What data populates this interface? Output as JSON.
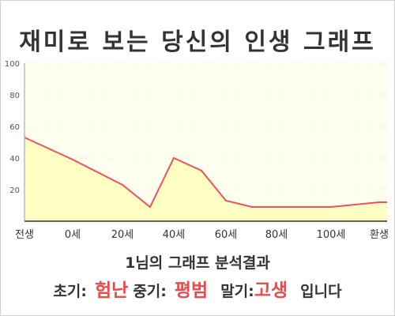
{
  "title": "재미로 보는 당신의 인생 그래프",
  "result": {
    "subtitle": "1님의 그래프 분석결과",
    "early_label": "초기:",
    "early_value": "험난",
    "middle_label": "중기:",
    "middle_value": "평범",
    "late_label": "말기:",
    "late_value": "고생",
    "suffix": "입니다"
  },
  "colors": {
    "line": "#f05060",
    "area": "#ffffc4",
    "plot_background": "#fffff0",
    "grid": "#ececdc",
    "highlight": "#f04848"
  },
  "chart_data": {
    "type": "area",
    "title": "재미로 보는 당신의 인생 그래프",
    "xlabel": "",
    "ylabel": "",
    "ylim": [
      0,
      100
    ],
    "y_ticks": [
      20,
      40,
      60,
      80,
      100
    ],
    "x_tick_labels": [
      "전생",
      "0세",
      "20세",
      "40세",
      "60세",
      "80세",
      "100세",
      "환생"
    ],
    "grid": true,
    "series": [
      {
        "x": [
          "전생",
          "0세",
          "20세",
          "30세",
          "40세",
          "50세",
          "60세",
          "70세",
          "80세",
          "100세",
          "환생"
        ],
        "values": [
          53,
          39,
          23,
          9,
          40,
          32,
          13,
          9,
          9,
          9,
          12
        ]
      }
    ]
  }
}
